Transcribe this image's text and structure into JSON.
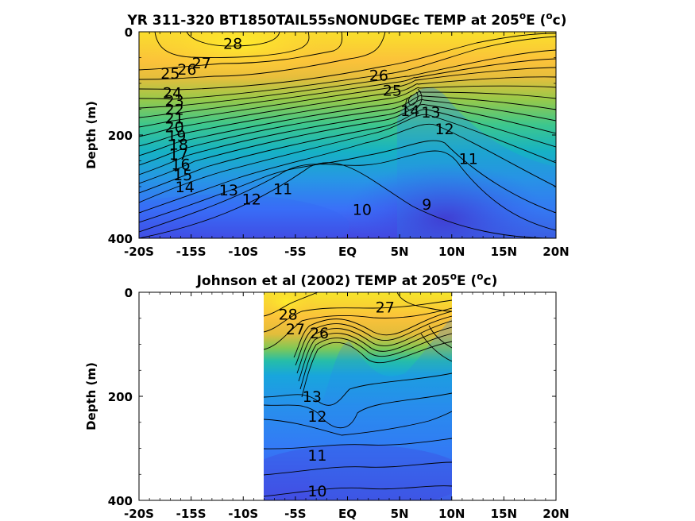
{
  "chart_data": [
    {
      "type": "heatmap",
      "title_main": "YR 311-320 BT1850TAIL55sNONUDGEc TEMP at 205",
      "title_deg": "o",
      "title_e": "E (",
      "title_unit_sup": "o",
      "title_unit_end": "c)",
      "ylabel": "Depth (m)",
      "xlim": [
        -20,
        20
      ],
      "ylim": [
        0,
        400
      ],
      "y_reversed": true,
      "xticks": [
        "-20S",
        "-15S",
        "-10S",
        "-5S",
        "EQ",
        "5N",
        "10N",
        "15N",
        "20N"
      ],
      "xtick_values": [
        -20,
        -15,
        -10,
        -5,
        0,
        5,
        10,
        15,
        20
      ],
      "yticks": [
        "0",
        "200",
        "400"
      ],
      "ytick_values": [
        0,
        200,
        400
      ],
      "data_coverage": [
        -20,
        20
      ],
      "contour_labels": [
        {
          "text": "28",
          "lat": -11,
          "depth": 22
        },
        {
          "text": "27",
          "lat": -14,
          "depth": 60
        },
        {
          "text": "26",
          "lat": -15.4,
          "depth": 72
        },
        {
          "text": "25",
          "lat": -17,
          "depth": 80
        },
        {
          "text": "24",
          "lat": -16.8,
          "depth": 118
        },
        {
          "text": "23",
          "lat": -16.6,
          "depth": 133
        },
        {
          "text": "22",
          "lat": -16.6,
          "depth": 150
        },
        {
          "text": "21",
          "lat": -16.6,
          "depth": 167
        },
        {
          "text": "20",
          "lat": -16.6,
          "depth": 184
        },
        {
          "text": "19",
          "lat": -16.4,
          "depth": 201
        },
        {
          "text": "18",
          "lat": -16.2,
          "depth": 218
        },
        {
          "text": "17",
          "lat": -16.2,
          "depth": 237
        },
        {
          "text": "16",
          "lat": -16,
          "depth": 256
        },
        {
          "text": "15",
          "lat": -15.8,
          "depth": 277
        },
        {
          "text": "14",
          "lat": -15.6,
          "depth": 300
        },
        {
          "text": "13",
          "lat": -11.4,
          "depth": 306
        },
        {
          "text": "12",
          "lat": -9.2,
          "depth": 324
        },
        {
          "text": "11",
          "lat": -6.2,
          "depth": 304
        },
        {
          "text": "10",
          "lat": 1.4,
          "depth": 344
        },
        {
          "text": "9",
          "lat": 7.6,
          "depth": 334
        },
        {
          "text": "26",
          "lat": 3,
          "depth": 84
        },
        {
          "text": "25",
          "lat": 4.3,
          "depth": 113
        },
        {
          "text": "14",
          "lat": 6,
          "depth": 152
        },
        {
          "text": "13",
          "lat": 8,
          "depth": 155
        },
        {
          "text": "12",
          "lat": 9.3,
          "depth": 188
        },
        {
          "text": "11",
          "lat": 11.6,
          "depth": 245
        }
      ],
      "colormap": [
        "#3e26a8",
        "#4743e6",
        "#3a69fa",
        "#258bee",
        "#18a8d6",
        "#12bcb0",
        "#43c97f",
        "#9bc946",
        "#e0bd3a",
        "#fdc039",
        "#f5de2a",
        "#f9fb15"
      ]
    },
    {
      "type": "heatmap",
      "title_main": "Johnson et al (2002) TEMP at 205",
      "title_deg": "o",
      "title_e": "E (",
      "title_unit_sup": "o",
      "title_unit_end": "c)",
      "ylabel": "Depth (m)",
      "xlim": [
        -20,
        20
      ],
      "ylim": [
        0,
        400
      ],
      "y_reversed": true,
      "xticks": [
        "-20S",
        "-15S",
        "-10S",
        "-5S",
        "EQ",
        "5N",
        "10N",
        "15N",
        "20N"
      ],
      "xtick_values": [
        -20,
        -15,
        -10,
        -5,
        0,
        5,
        10,
        15,
        20
      ],
      "yticks": [
        "0",
        "200",
        "400"
      ],
      "ytick_values": [
        0,
        200,
        400
      ],
      "data_coverage": [
        -8,
        10
      ],
      "contour_labels": [
        {
          "text": "28",
          "lat": -5.7,
          "depth": 42
        },
        {
          "text": "27",
          "lat": 3.6,
          "depth": 28
        },
        {
          "text": "27",
          "lat": -5,
          "depth": 70
        },
        {
          "text": "26",
          "lat": -2.7,
          "depth": 78
        },
        {
          "text": "13",
          "lat": -3.4,
          "depth": 200
        },
        {
          "text": "12",
          "lat": -2.9,
          "depth": 238
        },
        {
          "text": "11",
          "lat": -2.9,
          "depth": 313
        },
        {
          "text": "10",
          "lat": -2.9,
          "depth": 382
        }
      ]
    }
  ]
}
